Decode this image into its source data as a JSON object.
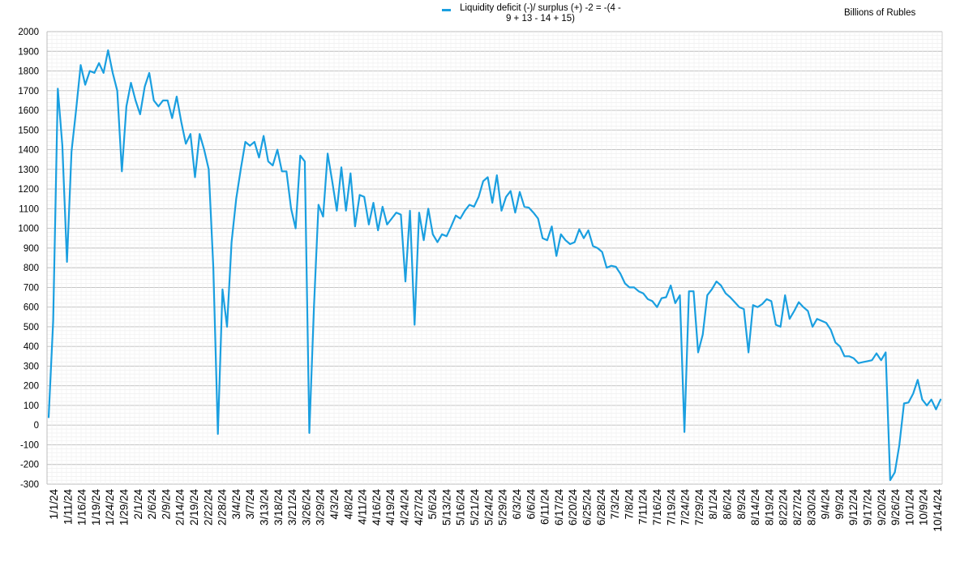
{
  "chart_data": {
    "type": "line",
    "ylabel": "",
    "xlabel": "",
    "units_label": "Billions of Rubles",
    "ylim": [
      -300,
      2000
    ],
    "y_ticks": [
      -300,
      -200,
      -100,
      0,
      100,
      200,
      300,
      400,
      500,
      600,
      700,
      800,
      900,
      1000,
      1100,
      1200,
      1300,
      1400,
      1500,
      1600,
      1700,
      1800,
      1900,
      2000
    ],
    "grid": true,
    "legend": "top-center",
    "x_tick_labels": [
      "1/1/24",
      "1/11/24",
      "1/16/24",
      "1/19/24",
      "1/24/24",
      "1/29/24",
      "2/1/24",
      "2/6/24",
      "2/9/24",
      "2/14/24",
      "2/19/24",
      "2/22/24",
      "2/28/24",
      "3/4/24",
      "3/7/24",
      "3/13/24",
      "3/18/24",
      "3/21/24",
      "3/26/24",
      "3/29/24",
      "4/3/24",
      "4/8/24",
      "4/11/24",
      "4/16/24",
      "4/19/24",
      "4/24/24",
      "4/27/24",
      "5/6/24",
      "5/13/24",
      "5/16/24",
      "5/21/24",
      "5/24/24",
      "5/29/24",
      "6/3/24",
      "6/6/24",
      "6/11/24",
      "6/17/24",
      "6/20/24",
      "6/25/24",
      "6/28/24",
      "7/3/24",
      "7/8/24",
      "7/11/24",
      "7/16/24",
      "7/19/24",
      "7/24/24",
      "7/29/24",
      "8/1/24",
      "8/6/24",
      "8/9/24",
      "8/14/24",
      "8/19/24",
      "8/22/24",
      "8/27/24",
      "8/30/24",
      "9/4/24",
      "9/9/24",
      "9/12/24",
      "9/17/24",
      "9/20/24",
      "9/26/24",
      "10/1/24",
      "10/9/24",
      "10/14/24"
    ],
    "series": [
      {
        "name": "Liquidity deficit (-)/ surplus (+) -2 = -(4 - 9 + 13 - 14 + 15)",
        "color": "#1a9fe0",
        "values": [
          40,
          530,
          1710,
          1420,
          830,
          1390,
          1600,
          1830,
          1730,
          1800,
          1790,
          1840,
          1790,
          1905,
          1790,
          1700,
          1290,
          1620,
          1740,
          1650,
          1580,
          1720,
          1790,
          1650,
          1620,
          1650,
          1650,
          1560,
          1670,
          1540,
          1430,
          1480,
          1260,
          1480,
          1400,
          1300,
          800,
          -45,
          690,
          500,
          930,
          1150,
          1300,
          1440,
          1420,
          1440,
          1360,
          1470,
          1340,
          1320,
          1400,
          1290,
          1290,
          1100,
          1000,
          1370,
          1340,
          -40,
          600,
          1120,
          1060,
          1380,
          1240,
          1090,
          1310,
          1090,
          1280,
          1010,
          1170,
          1160,
          1020,
          1130,
          990,
          1110,
          1020,
          1050,
          1080,
          1070,
          730,
          1090,
          510,
          1080,
          940,
          1100,
          970,
          930,
          970,
          960,
          1010,
          1065,
          1050,
          1090,
          1120,
          1110,
          1160,
          1240,
          1260,
          1130,
          1270,
          1090,
          1160,
          1190,
          1080,
          1185,
          1110,
          1105,
          1080,
          1050,
          950,
          940,
          1010,
          860,
          970,
          940,
          920,
          930,
          995,
          950,
          990,
          910,
          900,
          880,
          800,
          810,
          805,
          770,
          720,
          700,
          700,
          680,
          670,
          640,
          630,
          600,
          645,
          650,
          710,
          620,
          660,
          -35,
          680,
          680,
          370,
          460,
          660,
          690,
          730,
          710,
          670,
          650,
          625,
          600,
          590,
          370,
          610,
          600,
          615,
          640,
          630,
          510,
          500,
          660,
          540,
          580,
          625,
          600,
          580,
          500,
          540,
          530,
          520,
          485,
          420,
          400,
          350,
          350,
          340,
          315,
          320,
          325,
          330,
          365,
          330,
          370,
          -280,
          -240,
          -100,
          110,
          115,
          160,
          230,
          130,
          100,
          130,
          80,
          130
        ]
      }
    ]
  }
}
